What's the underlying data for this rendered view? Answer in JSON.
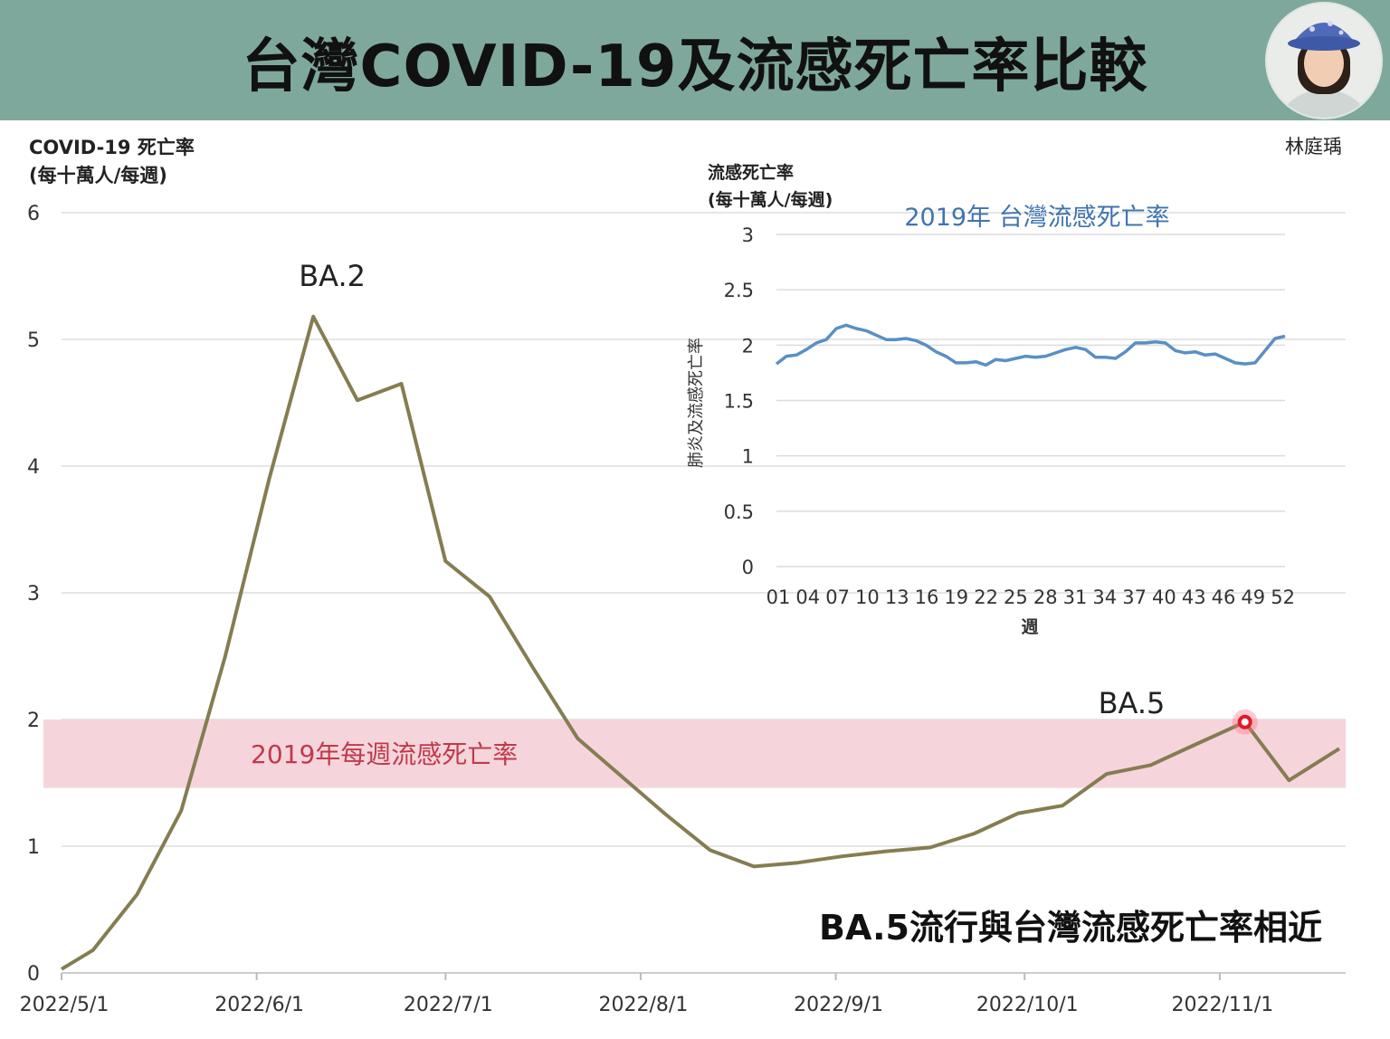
{
  "header": {
    "title": "台灣COVID-19及流感死亡率比較",
    "author": "林庭瑀"
  },
  "colors": {
    "header_bg": "#7fa89c",
    "covid_line": "#857d52",
    "flu_line": "#5a8fc4",
    "flu_band": "#f5d5db",
    "band_label": "#c0394b",
    "marker": "#e3182a"
  },
  "conclusion": "BA.5流行與台灣流感死亡率相近",
  "chart_data": [
    {
      "type": "line",
      "ylabel_line1": "COVID-19 死亡率",
      "ylabel_line2": "(每十萬人/每週)",
      "ylim": [
        0,
        6
      ],
      "yticks": [
        "0",
        "1",
        "2",
        "3",
        "4",
        "5",
        "6"
      ],
      "xlim_days": [
        0,
        204
      ],
      "xticks": [
        {
          "label": "2022/5/1",
          "day": 0
        },
        {
          "label": "2022/6/1",
          "day": 31
        },
        {
          "label": "2022/7/1",
          "day": 61
        },
        {
          "label": "2022/8/1",
          "day": 92
        },
        {
          "label": "2022/9/1",
          "day": 123
        },
        {
          "label": "2022/10/1",
          "day": 153
        },
        {
          "label": "2022/11/1",
          "day": 184
        }
      ],
      "grid": true,
      "band": {
        "from": 1.46,
        "to": 2.0,
        "label": "2019年每週流感死亡率"
      },
      "annotations": [
        {
          "text": "BA.2",
          "day": 43,
          "y": 5.42
        },
        {
          "text": "BA.5",
          "day": 170,
          "y": 2.05
        }
      ],
      "highlight": {
        "day": 188,
        "y": 1.98
      },
      "series": [
        {
          "x": [
            0,
            5,
            12,
            19,
            26,
            33,
            40,
            47,
            54,
            61,
            68,
            75,
            82,
            89,
            96,
            103,
            110,
            117,
            124,
            131,
            138,
            145,
            152,
            159,
            166,
            173,
            180,
            188,
            195,
            203
          ],
          "y": [
            0.03,
            0.18,
            0.62,
            1.28,
            2.5,
            3.9,
            5.18,
            4.52,
            4.65,
            3.25,
            2.97,
            2.4,
            1.85,
            1.55,
            1.25,
            0.97,
            0.84,
            0.87,
            0.92,
            0.96,
            0.99,
            1.1,
            1.26,
            1.32,
            1.57,
            1.64,
            1.8,
            1.98,
            1.52,
            1.77
          ]
        }
      ]
    },
    {
      "type": "line",
      "title": "2019年 台灣流感死亡率",
      "ylabel_line1": "流感死亡率",
      "ylabel_line2": "(每十萬人/每週)",
      "ylabel_vertical": "肺炎及流感死亡率",
      "xlabel": "週",
      "ylim": [
        0,
        3
      ],
      "yticks": [
        "0",
        "0.5",
        "1",
        "1.5",
        "2",
        "2.5",
        "3"
      ],
      "xlim": [
        1,
        52
      ],
      "xticks": [
        "01",
        "04",
        "07",
        "10",
        "13",
        "16",
        "19",
        "22",
        "25",
        "28",
        "31",
        "34",
        "37",
        "40",
        "43",
        "46",
        "49",
        "52"
      ],
      "grid": true,
      "series": [
        {
          "x": [
            1,
            2,
            3,
            4,
            5,
            6,
            7,
            8,
            9,
            10,
            11,
            12,
            13,
            14,
            15,
            16,
            17,
            18,
            19,
            20,
            21,
            22,
            23,
            24,
            25,
            26,
            27,
            28,
            29,
            30,
            31,
            32,
            33,
            34,
            35,
            36,
            37,
            38,
            39,
            40,
            41,
            42,
            43,
            44,
            45,
            46,
            47,
            48,
            49,
            50,
            51,
            52
          ],
          "y": [
            1.83,
            1.9,
            1.91,
            1.96,
            2.02,
            2.05,
            2.15,
            2.18,
            2.15,
            2.13,
            2.09,
            2.05,
            2.05,
            2.06,
            2.04,
            2.0,
            1.94,
            1.9,
            1.84,
            1.84,
            1.85,
            1.82,
            1.87,
            1.86,
            1.88,
            1.9,
            1.89,
            1.9,
            1.93,
            1.96,
            1.98,
            1.96,
            1.89,
            1.89,
            1.88,
            1.94,
            2.02,
            2.02,
            2.03,
            2.02,
            1.95,
            1.93,
            1.94,
            1.91,
            1.92,
            1.88,
            1.84,
            1.83,
            1.84,
            1.95,
            2.06,
            2.08
          ]
        }
      ]
    }
  ]
}
